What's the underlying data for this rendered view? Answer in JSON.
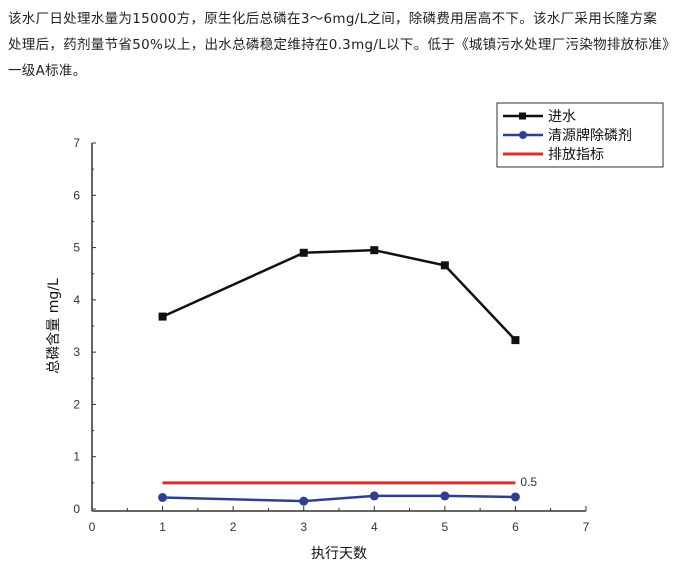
{
  "paragraph": "该水厂日处理水量为15000方，原生化后总磷在3～6mg/L之间，除磷费用居高不下。该水厂采用长隆方案处理后，药剂量节省50%以上，出水总磷稳定维持在0.3mg/L以下。低于《城镇污水处理厂污染物排放标准》一级A标准。",
  "chart_data": {
    "type": "line",
    "title": "",
    "xlabel": "执行天数",
    "ylabel": "总磷含量 mg/L",
    "xlim": [
      0,
      7
    ],
    "ylim": [
      0,
      7
    ],
    "xticks": [
      "0",
      "1",
      "2",
      "3",
      "4",
      "5",
      "6",
      "7"
    ],
    "yticks": [
      "0",
      "1",
      "2",
      "3",
      "4",
      "5",
      "6",
      "7"
    ],
    "grid": false,
    "legend_position": "top-right",
    "series": [
      {
        "name": "进水",
        "color": "#111111",
        "marker": "square",
        "x": [
          1,
          3,
          4,
          5,
          6
        ],
        "y": [
          3.68,
          4.9,
          4.95,
          4.66,
          3.23
        ]
      },
      {
        "name": "清源牌除磷剂",
        "color": "#2f3f8f",
        "marker": "circle",
        "x": [
          1,
          3,
          4,
          5,
          6
        ],
        "y": [
          0.22,
          0.15,
          0.25,
          0.25,
          0.23
        ]
      },
      {
        "name": "排放指标",
        "color": "#d9302a",
        "marker": "none",
        "x": [
          1,
          6
        ],
        "y": [
          0.5,
          0.5
        ]
      }
    ],
    "annotations": [
      {
        "text": "0.5",
        "x": 6,
        "y": 0.5
      }
    ]
  }
}
